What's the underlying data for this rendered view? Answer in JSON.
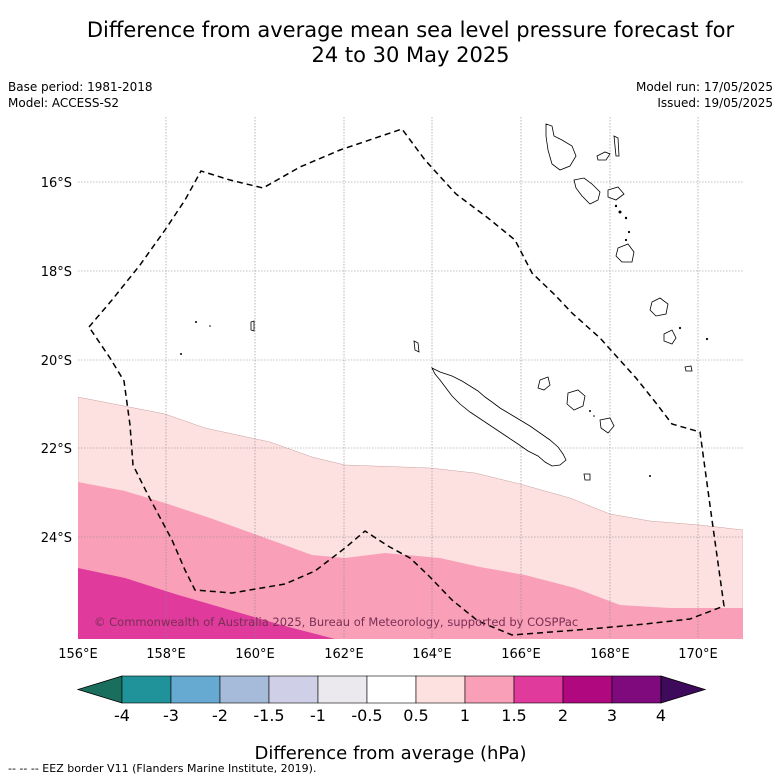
{
  "title": {
    "line1": "Difference from average mean sea level pressure forecast for",
    "line2": "24 to 30 May 2025"
  },
  "meta": {
    "base_period": "Base period: 1981-2018",
    "model": "Model: ACCESS-S2",
    "model_run": "Model run: 17/05/2025",
    "issued": "Issued: 19/05/2025"
  },
  "map": {
    "lon_labels": [
      "156°E",
      "158°E",
      "160°E",
      "162°E",
      "164°E",
      "166°E",
      "168°E",
      "170°E"
    ],
    "lat_labels": [
      "16°S",
      "18°S",
      "20°S",
      "22°S",
      "24°S"
    ],
    "copyright": "© Commonwealth of Australia 2025, Bureau of Meteorology, supported by COSPPac",
    "fill_colors": {
      "pos_0_5_to_1": "#fde0e0",
      "pos_1_to_1_5": "#f9a0b8",
      "pos_1_5_to_2": "#df3a9c"
    }
  },
  "colorbar": {
    "ticks": [
      "-4",
      "-3",
      "-2",
      "-1.5",
      "-1",
      "-0.5",
      "0.5",
      "1",
      "1.5",
      "2",
      "3",
      "4"
    ],
    "colors": [
      "#1a6e5e",
      "#1f9399",
      "#66a9d1",
      "#a6bad9",
      "#cfcfe8",
      "#ebe9ed",
      "#ffffff",
      "#fde0e0",
      "#f9a0b8",
      "#df3a9c",
      "#b0087f",
      "#7e0a7d",
      "#3d0a5c"
    ],
    "label": "Difference from average (hPa)"
  },
  "footnote": "--  --  -- EEZ border V11 (Flanders Marine Institute, 2019)."
}
